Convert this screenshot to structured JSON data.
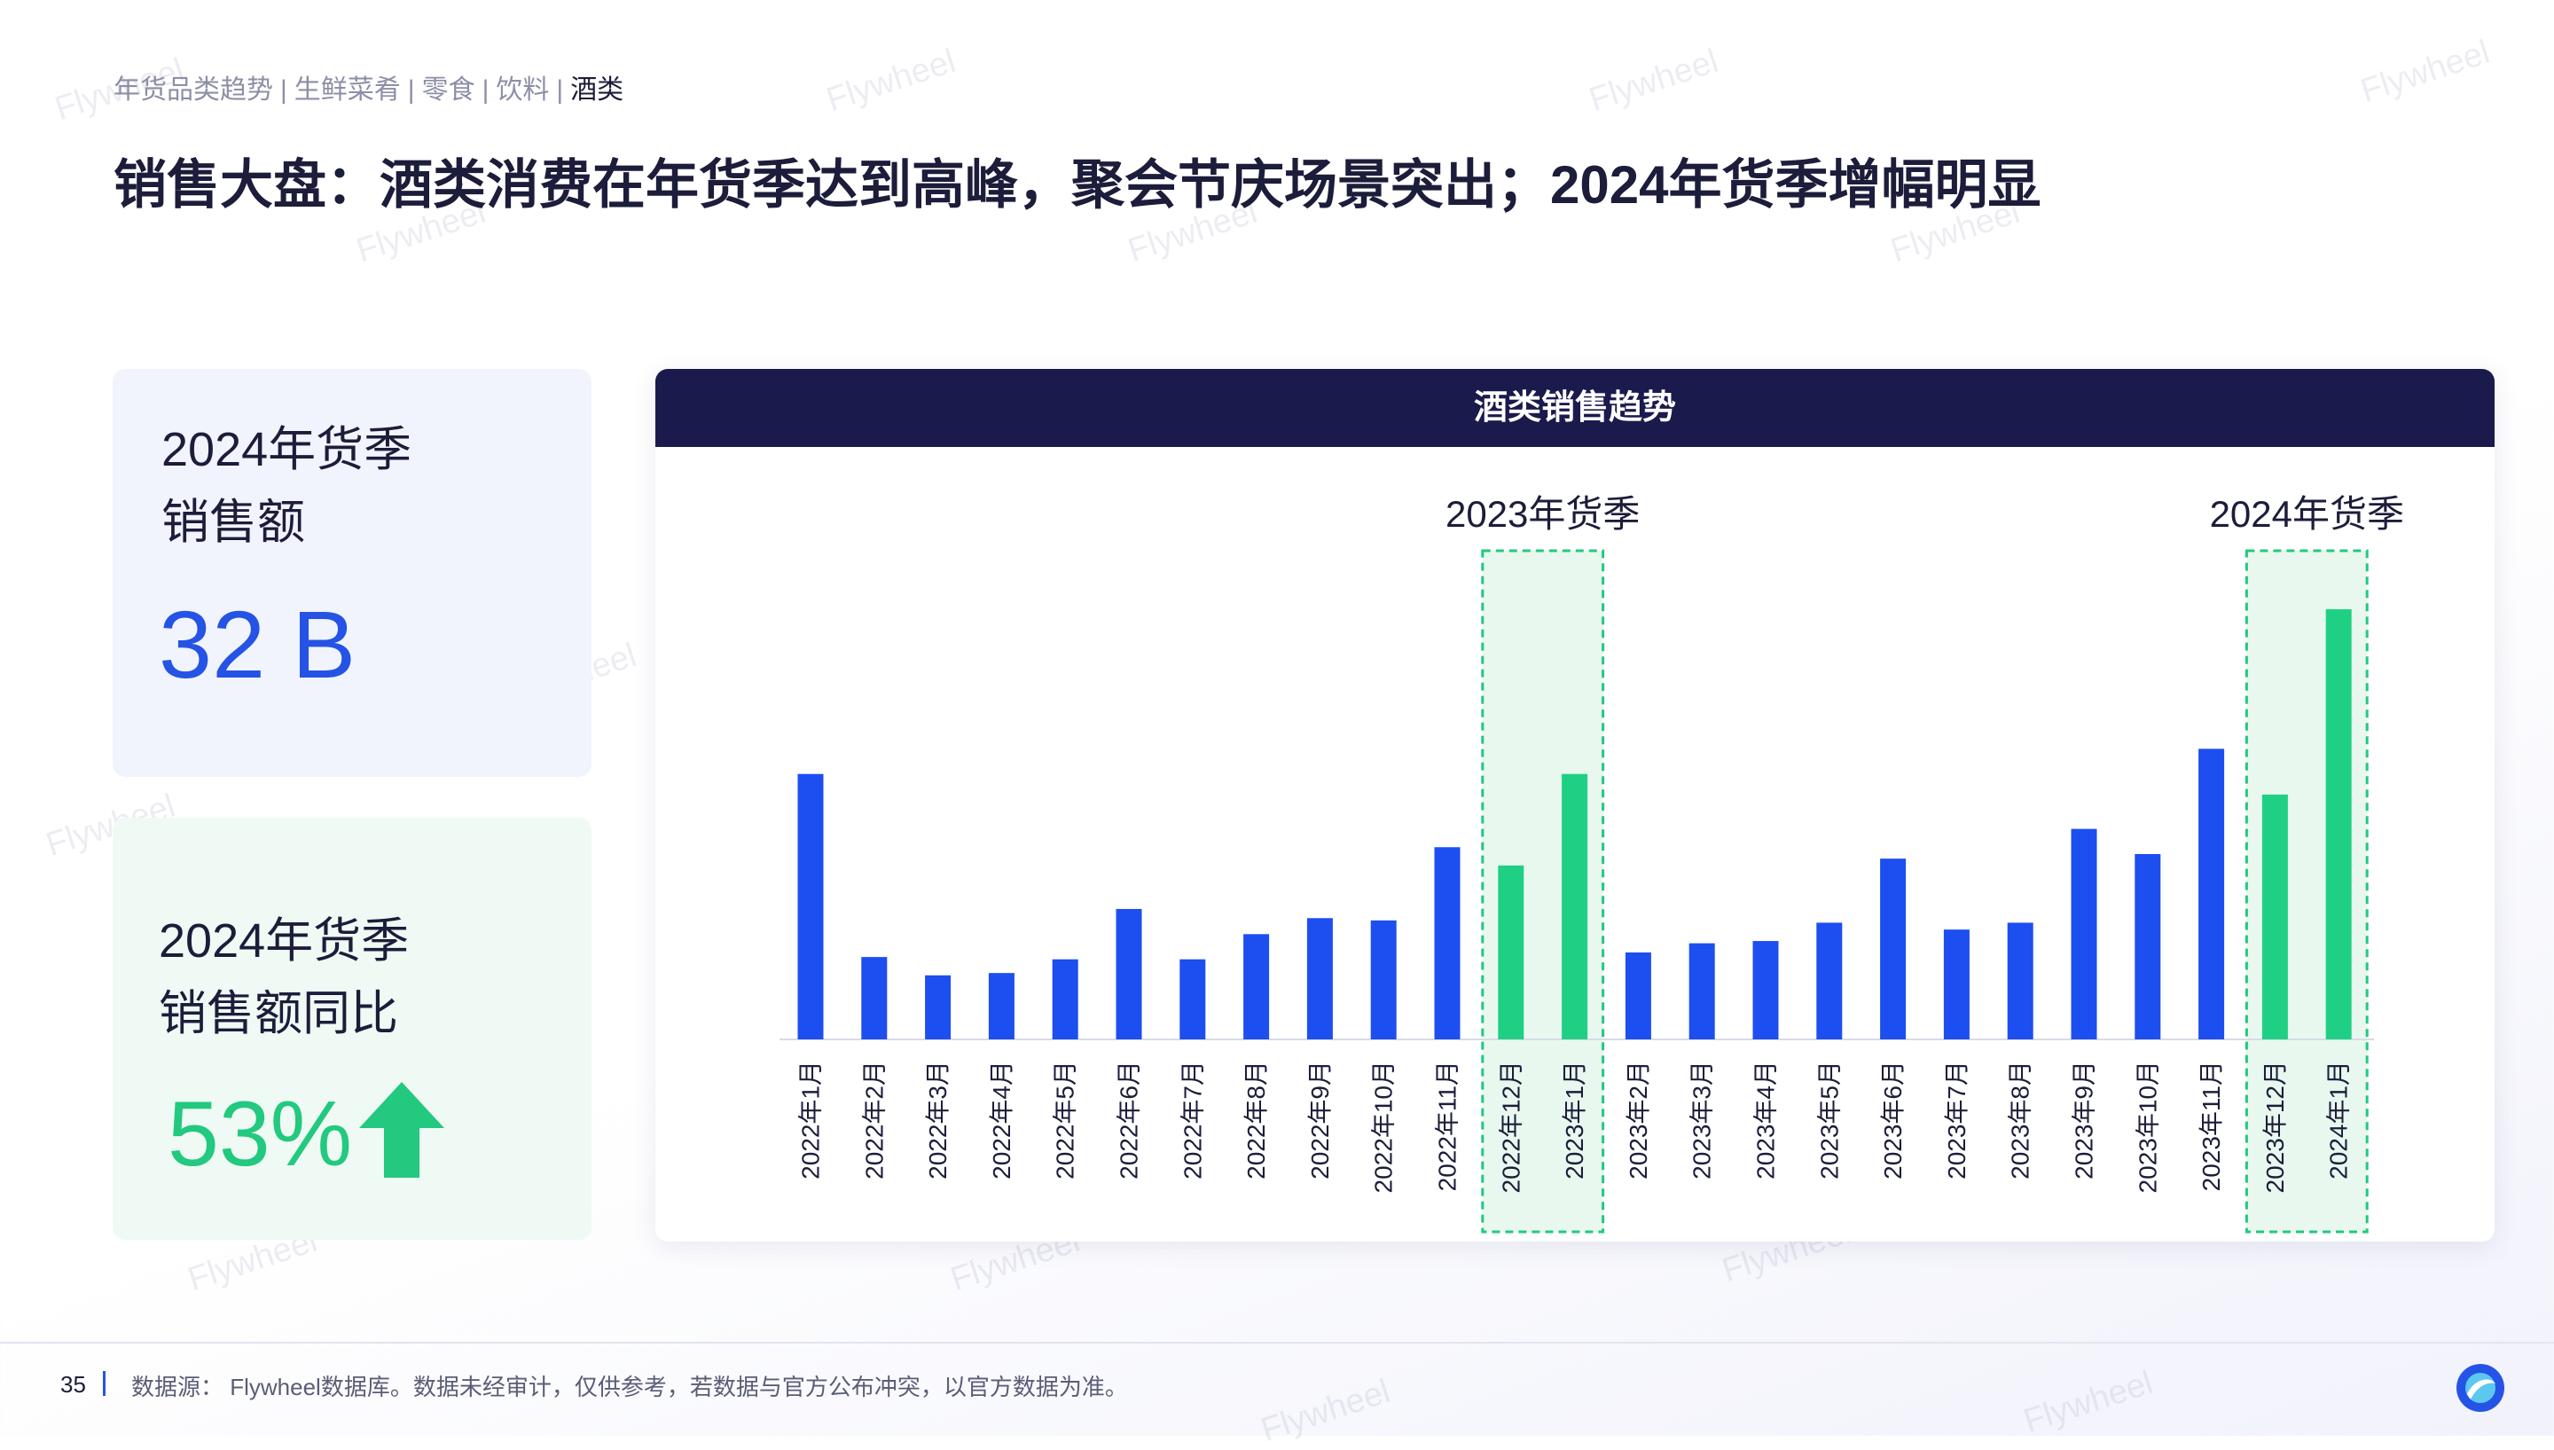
{
  "breadcrumb": {
    "items": [
      "年货品类趋势",
      "生鲜菜肴",
      "零食",
      "饮料",
      "酒类"
    ],
    "active_index": 4
  },
  "page_title": "销售大盘：酒类消费在年货季达到高峰，聚会节庆场景突出；2024年货季增幅明显",
  "kpi_sales": {
    "label_line1": "2024年货季",
    "label_line2": "销售额",
    "value": "32 B",
    "color": "#2553e6"
  },
  "kpi_yoy": {
    "label_line1": "2024年货季",
    "label_line2": "销售额同比",
    "value": "53%",
    "trend": "up-arrow-icon",
    "color": "#22c97e"
  },
  "chart_data": {
    "type": "bar",
    "title": "酒类销售趋势",
    "categories": [
      "2022年1月",
      "2022年2月",
      "2022年3月",
      "2022年4月",
      "2022年5月",
      "2022年6月",
      "2022年7月",
      "2022年8月",
      "2022年9月",
      "2022年10月",
      "2022年11月",
      "2022年12月",
      "2023年1月",
      "2023年2月",
      "2023年3月",
      "2023年4月",
      "2023年5月",
      "2023年6月",
      "2023年7月",
      "2023年8月",
      "2023年9月",
      "2023年10月",
      "2023年11月",
      "2023年12月",
      "2024年1月"
    ],
    "values": [
      58,
      18,
      14,
      14.5,
      17.5,
      28.5,
      17.5,
      23,
      26.5,
      26,
      42,
      38,
      58,
      19,
      21,
      21.5,
      25.5,
      39.5,
      24,
      25.5,
      46,
      40.5,
      63.5,
      53.5,
      94
    ],
    "highlight_indices": [
      11,
      12,
      23,
      24
    ],
    "ylim": [
      0,
      100
    ],
    "y_axis_visible": false,
    "grid": false,
    "colors": {
      "normal": "#1d4ef0",
      "highlight": "#1fd084",
      "band_fill": "#e8f8ef",
      "band_border": "#22c97e"
    },
    "annotations": [
      {
        "label": "2023年货季",
        "start_index": 11,
        "end_index": 12
      },
      {
        "label": "2024年货季",
        "start_index": 23,
        "end_index": 24
      }
    ]
  },
  "footer": {
    "page_number": "35",
    "source": "数据源： Flywheel数据库。数据未经审计，仅供参考，若数据与官方公布冲突，以官方数据为准。"
  },
  "watermark_text": "Flywheel"
}
